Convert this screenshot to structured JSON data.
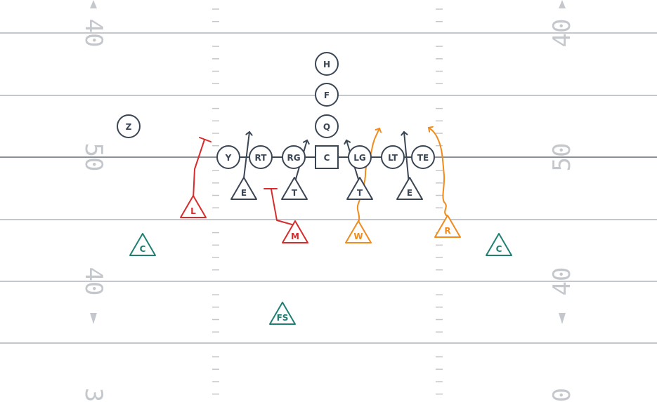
{
  "colors": {
    "offense": "#3b4654",
    "blitz": "#d92b2b",
    "rush": "#f08b1c",
    "coverage": "#1f7f73",
    "field_line": "#c4c8cc",
    "los": "#8a9097"
  },
  "yard_numbers": {
    "top_left": "40",
    "mid_left": "50",
    "low_left": "40",
    "bottom_left": "3",
    "top_right": "40",
    "mid_right": "50",
    "low_right": "40",
    "bottom_right": "0"
  },
  "offense": {
    "backs": [
      {
        "label": "H"
      },
      {
        "label": "F"
      },
      {
        "label": "Q"
      },
      {
        "label": "Z"
      }
    ],
    "line": [
      {
        "label": "Y"
      },
      {
        "label": "RT"
      },
      {
        "label": "RG"
      },
      {
        "label": "C"
      },
      {
        "label": "LG"
      },
      {
        "label": "LT"
      },
      {
        "label": "TE"
      }
    ]
  },
  "defense": {
    "front": [
      {
        "label": "E"
      },
      {
        "label": "T"
      },
      {
        "label": "T"
      },
      {
        "label": "E"
      }
    ],
    "blitzers": [
      {
        "label": "L"
      },
      {
        "label": "M"
      }
    ],
    "rushers": [
      {
        "label": "W"
      },
      {
        "label": "R"
      }
    ],
    "coverage": [
      {
        "label": "C"
      },
      {
        "label": "C"
      },
      {
        "label": "FS"
      }
    ]
  }
}
